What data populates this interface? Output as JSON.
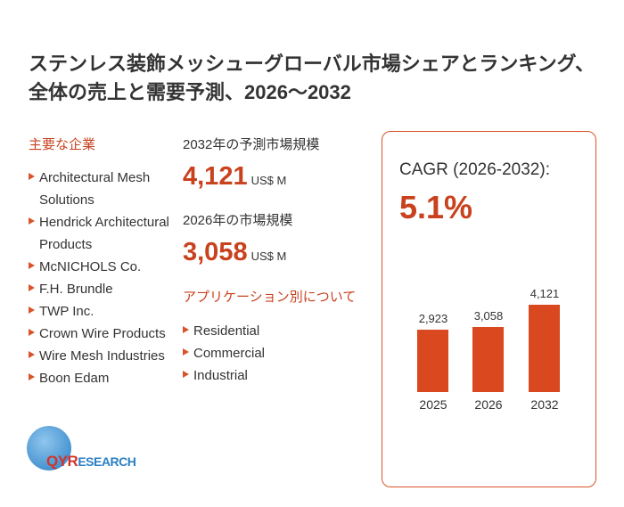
{
  "title": "ステンレス装飾メッシューグローバル市場シェアとランキング、全体の売上と需要予測、2026～2032",
  "companies_heading": "主要な企業",
  "companies": [
    "Architectural Mesh Solutions",
    "Hendrick Architectural Products",
    "McNICHOLS Co.",
    "F.H. Brundle",
    "TWP Inc.",
    "Crown Wire Products",
    "Wire Mesh Industries",
    "Boon Edam"
  ],
  "forecast_label": "2032年の予測市場規模",
  "forecast_value": "4,121",
  "forecast_unit": "US$ M",
  "current_label": "2026年の市場規模",
  "current_value": "3,058",
  "current_unit": "US$ M",
  "app_heading": "アプリケーション別について",
  "applications": [
    "Residential",
    "Commercial",
    "Industrial"
  ],
  "cagr_label": "CAGR (2026-2032):",
  "cagr_value": "5.1%",
  "logo_text": "QYRESEARCH",
  "chart_data": {
    "type": "bar",
    "categories": [
      "2025",
      "2026",
      "2032"
    ],
    "values": [
      2923,
      3058,
      4121
    ],
    "value_labels": [
      "2,923",
      "3,058",
      "4,121"
    ],
    "color": "#d9481e"
  }
}
